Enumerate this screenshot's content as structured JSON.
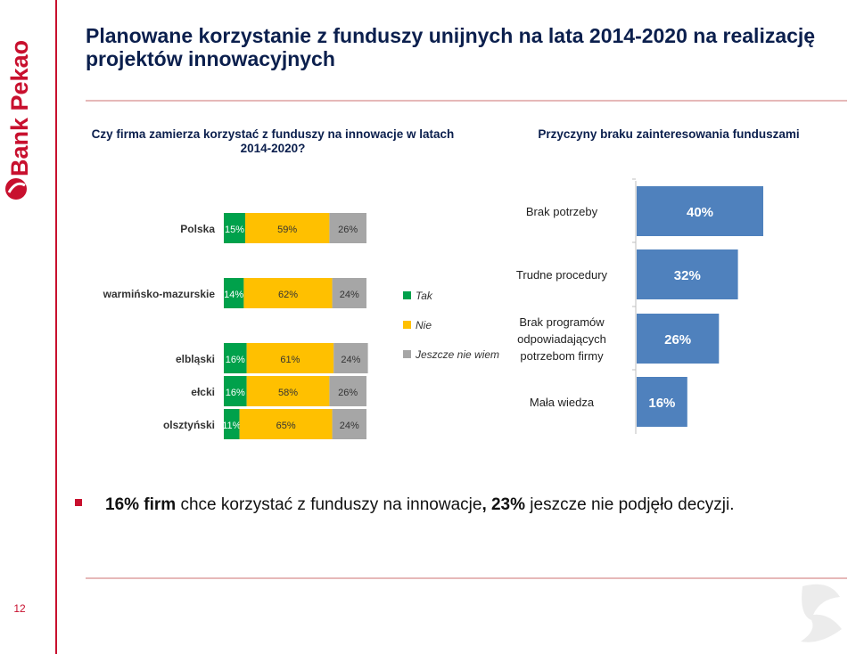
{
  "brand": {
    "name": "Bank Pekao",
    "accent": "#c8102e"
  },
  "title": "Planowane korzystanie z funduszy unijnych na lata 2014-2020 na realizację projektów innowacyjnych",
  "left_question": "Czy firma zamierza korzystać z funduszy na innowacje w latach 2014-2020?",
  "right_question": "Przyczyny braku zainteresowania funduszami",
  "summary": {
    "part1": "16% firm",
    "part2": " chce korzystać z funduszy na innowacje",
    "part3": ", 23%",
    "part4": " jeszcze nie podjęło decyzji."
  },
  "page_number": "12",
  "chart_data": [
    {
      "type": "bar",
      "orientation": "horizontal",
      "stacked": true,
      "categories": [
        "Polska",
        "warmińsko-mazurskie",
        "elbląski",
        "ełcki",
        "olsztyński"
      ],
      "series": [
        {
          "name": "Tak",
          "color": "#00a14b",
          "values": [
            15,
            14,
            16,
            16,
            11
          ]
        },
        {
          "name": "Nie",
          "color": "#ffc000",
          "values": [
            59,
            62,
            61,
            58,
            65
          ]
        },
        {
          "name": "Jeszcze nie wiem",
          "color": "#a6a6a6",
          "values": [
            26,
            24,
            24,
            26,
            24
          ]
        }
      ],
      "value_suffix": "%",
      "legend": "right",
      "xlim": [
        0,
        100
      ]
    },
    {
      "type": "bar",
      "orientation": "horizontal",
      "categories": [
        "Brak potrzeby",
        "Trudne procedury",
        "Brak programów odpowiadających potrzebom firmy",
        "Mała wiedza"
      ],
      "category_lines": [
        [
          "Brak potrzeby"
        ],
        [
          "Trudne procedury"
        ],
        [
          "Brak programów",
          "odpowiadających",
          "potrzebom firmy"
        ],
        [
          "Mała wiedza"
        ]
      ],
      "values": [
        40,
        32,
        26,
        16
      ],
      "value_suffix": "%",
      "color": "#4f81bd",
      "xlim": [
        0,
        40
      ]
    }
  ]
}
